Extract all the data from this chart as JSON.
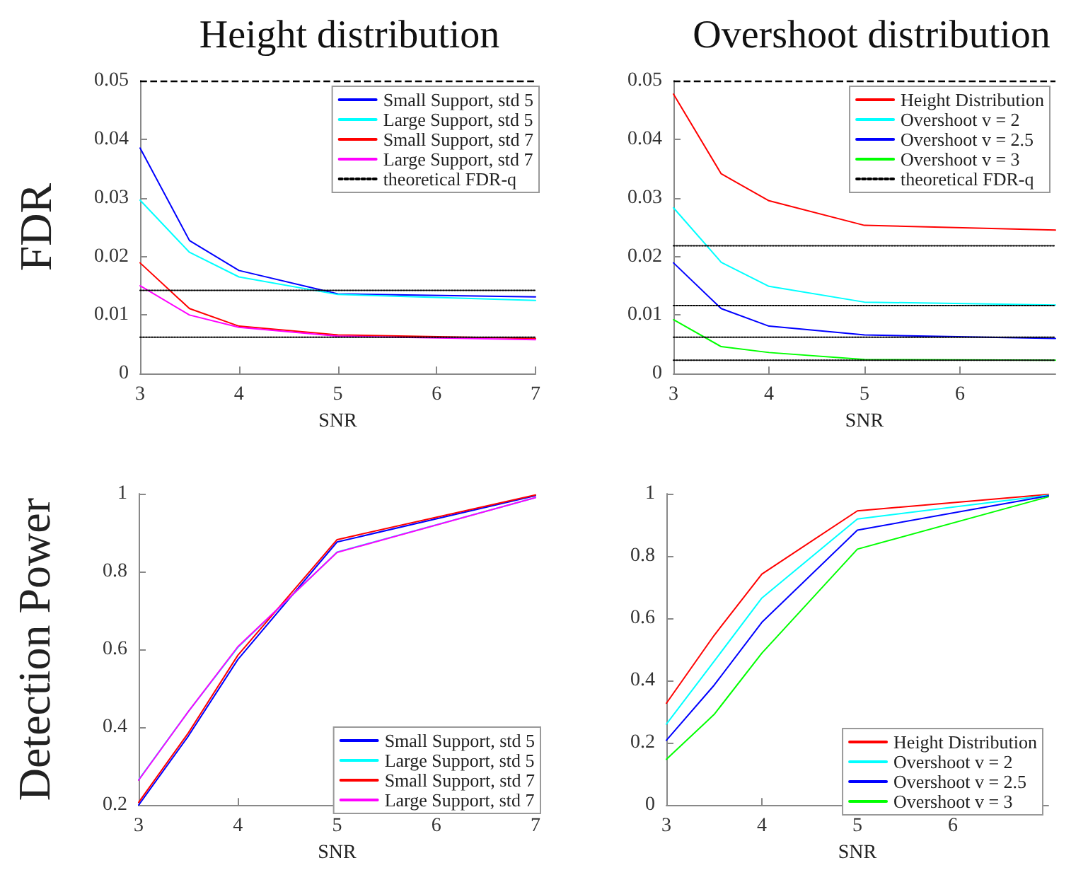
{
  "chart_data": [
    {
      "type": "line",
      "title": "Height distribution",
      "xlabel": "SNR",
      "ylabel": "FDR",
      "x": [
        3,
        3.5,
        4,
        5,
        7
      ],
      "xlim": [
        3,
        7
      ],
      "xticks": [
        3,
        4,
        5,
        6,
        7
      ],
      "ylim": [
        0,
        0.05
      ],
      "yticks": [
        0,
        0.01,
        0.02,
        0.03,
        0.04,
        0.05
      ],
      "legend": "top right",
      "ref_lines": [
        {
          "axis": "y",
          "value": 0.05,
          "color": "#000000",
          "line_style": "dashed"
        }
      ],
      "series": [
        {
          "name": "Small Support, std 5",
          "color": "#0000ff",
          "values": [
            0.0385,
            0.0227,
            0.0176,
            0.0136,
            0.0131
          ]
        },
        {
          "name": "Large Support, std 5",
          "color": "#00ffff",
          "values": [
            0.0296,
            0.0207,
            0.0165,
            0.0135,
            0.0125
          ]
        },
        {
          "name": "Small Support, std 7",
          "color": "#ff0000",
          "values": [
            0.0189,
            0.0111,
            0.0081,
            0.0066,
            0.006
          ]
        },
        {
          "name": "Large Support, std 7",
          "color": "#ff00ff",
          "values": [
            0.015,
            0.01,
            0.0079,
            0.0064,
            0.0058
          ]
        },
        {
          "name": "theoretical FDR-q",
          "color": "#000000",
          "line_style": "dotted",
          "values": [
            0.0142,
            0.0142,
            0.0142,
            0.0142,
            0.0142
          ]
        },
        {
          "color": "#000000",
          "line_style": "dotted",
          "values": [
            0.0062,
            0.0062,
            0.0062,
            0.0062,
            0.0062
          ]
        }
      ]
    },
    {
      "type": "line",
      "title": "Overshoot distribution",
      "xlabel": "SNR",
      "x": [
        3,
        3.5,
        4,
        5,
        7
      ],
      "xlim": [
        3,
        7
      ],
      "xticks": [
        3,
        4,
        5,
        6
      ],
      "ylim": [
        0,
        0.05
      ],
      "yticks": [
        0,
        0.01,
        0.02,
        0.03,
        0.04,
        0.05
      ],
      "legend": "top right",
      "ref_lines": [
        {
          "axis": "y",
          "value": 0.05,
          "color": "#000000",
          "line_style": "dashed"
        }
      ],
      "series": [
        {
          "name": "Height Distribution",
          "color": "#ff0000",
          "values": [
            0.0477,
            0.0341,
            0.0295,
            0.0253,
            0.0245
          ]
        },
        {
          "name": "Overshoot v = 2",
          "color": "#00ffff",
          "values": [
            0.0283,
            0.019,
            0.0149,
            0.0122,
            0.0117
          ]
        },
        {
          "name": "Overshoot v = 2.5",
          "color": "#0000ff",
          "values": [
            0.0189,
            0.0111,
            0.0081,
            0.0066,
            0.006
          ]
        },
        {
          "name": "Overshoot v = 3",
          "color": "#00ff00",
          "values": [
            0.0092,
            0.0046,
            0.0036,
            0.0024,
            0.0023
          ]
        },
        {
          "name": "theoretical FDR-q",
          "color": "#000000",
          "line_style": "dotted",
          "values": [
            0.0218,
            0.0218,
            0.0218,
            0.0218,
            0.0218
          ]
        },
        {
          "color": "#000000",
          "line_style": "dotted",
          "values": [
            0.0116,
            0.0116,
            0.0116,
            0.0116,
            0.0116
          ]
        },
        {
          "color": "#000000",
          "line_style": "dotted",
          "values": [
            0.0062,
            0.0062,
            0.0062,
            0.0062,
            0.0062
          ]
        },
        {
          "color": "#000000",
          "line_style": "dotted",
          "values": [
            0.0023,
            0.0023,
            0.0023,
            0.0023,
            0.0023
          ]
        }
      ]
    },
    {
      "type": "line",
      "xlabel": "SNR",
      "ylabel": "Detection Power",
      "x": [
        3,
        3.5,
        4,
        5,
        7
      ],
      "xlim": [
        3,
        7
      ],
      "xticks": [
        3,
        4,
        5,
        6,
        7
      ],
      "ylim": [
        0.2,
        1
      ],
      "yticks": [
        0.2,
        0.4,
        0.6,
        0.8,
        1
      ],
      "legend": "bottom right",
      "series": [
        {
          "name": "Small Support, std 5",
          "color": "#0000ff",
          "values": [
            0.2,
            0.377,
            0.574,
            0.876,
            0.995
          ]
        },
        {
          "name": "Large Support, std 5",
          "color": "#00ffff",
          "values": [
            0.265,
            0.44,
            0.605,
            0.85,
            0.99
          ]
        },
        {
          "name": "Small Support, std 7",
          "color": "#ff0000",
          "values": [
            0.207,
            0.385,
            0.585,
            0.882,
            0.997
          ]
        },
        {
          "name": "Large Support, std 7",
          "color": "#ff00ff",
          "values": [
            0.264,
            0.44,
            0.607,
            0.849,
            0.99
          ]
        }
      ]
    },
    {
      "type": "line",
      "xlabel": "SNR",
      "x": [
        3,
        3.5,
        4,
        5,
        7
      ],
      "xlim": [
        3,
        7
      ],
      "xticks": [
        3,
        4,
        5,
        6
      ],
      "ylim": [
        0,
        1
      ],
      "yticks": [
        0,
        0.2,
        0.4,
        0.6,
        0.8,
        1
      ],
      "legend": "bottom right",
      "series": [
        {
          "name": "Height Distribution",
          "color": "#ff0000",
          "values": [
            0.327,
            0.545,
            0.742,
            0.945,
            0.998
          ]
        },
        {
          "name": "Overshoot v = 2",
          "color": "#00ffff",
          "values": [
            0.26,
            0.462,
            0.665,
            0.919,
            0.995
          ]
        },
        {
          "name": "Overshoot v = 2.5",
          "color": "#0000ff",
          "values": [
            0.208,
            0.385,
            0.587,
            0.883,
            0.993
          ]
        },
        {
          "name": "Overshoot v = 3",
          "color": "#00ff00",
          "values": [
            0.147,
            0.291,
            0.488,
            0.822,
            0.99
          ]
        }
      ]
    }
  ]
}
